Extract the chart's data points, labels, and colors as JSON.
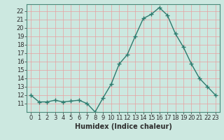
{
  "x": [
    0,
    1,
    2,
    3,
    4,
    5,
    6,
    7,
    8,
    9,
    10,
    11,
    12,
    13,
    14,
    15,
    16,
    17,
    18,
    19,
    20,
    21,
    22,
    23
  ],
  "y": [
    12.0,
    11.2,
    11.2,
    11.4,
    11.2,
    11.3,
    11.4,
    11.0,
    10.0,
    11.7,
    13.3,
    15.7,
    16.8,
    19.0,
    21.1,
    21.6,
    22.4,
    21.5,
    19.3,
    17.7,
    15.7,
    14.0,
    13.0,
    12.0
  ],
  "line_color": "#2d7b6e",
  "marker": "+",
  "marker_size": 4,
  "bg_color": "#cce8e0",
  "grid_color": "#e8a0a0",
  "xlabel": "Humidex (Indice chaleur)",
  "xlim": [
    -0.5,
    23.5
  ],
  "ylim": [
    10.0,
    22.8
  ],
  "yticks": [
    11,
    12,
    13,
    14,
    15,
    16,
    17,
    18,
    19,
    20,
    21,
    22
  ],
  "xticks": [
    0,
    1,
    2,
    3,
    4,
    5,
    6,
    7,
    8,
    9,
    10,
    11,
    12,
    13,
    14,
    15,
    16,
    17,
    18,
    19,
    20,
    21,
    22,
    23
  ],
  "xtick_labels": [
    "0",
    "1",
    "2",
    "3",
    "4",
    "5",
    "6",
    "7",
    "8",
    "9",
    "10",
    "11",
    "12",
    "13",
    "14",
    "15",
    "16",
    "17",
    "18",
    "19",
    "20",
    "21",
    "22",
    "23"
  ],
  "label_fontsize": 7,
  "tick_fontsize": 6,
  "line_width": 1.0
}
